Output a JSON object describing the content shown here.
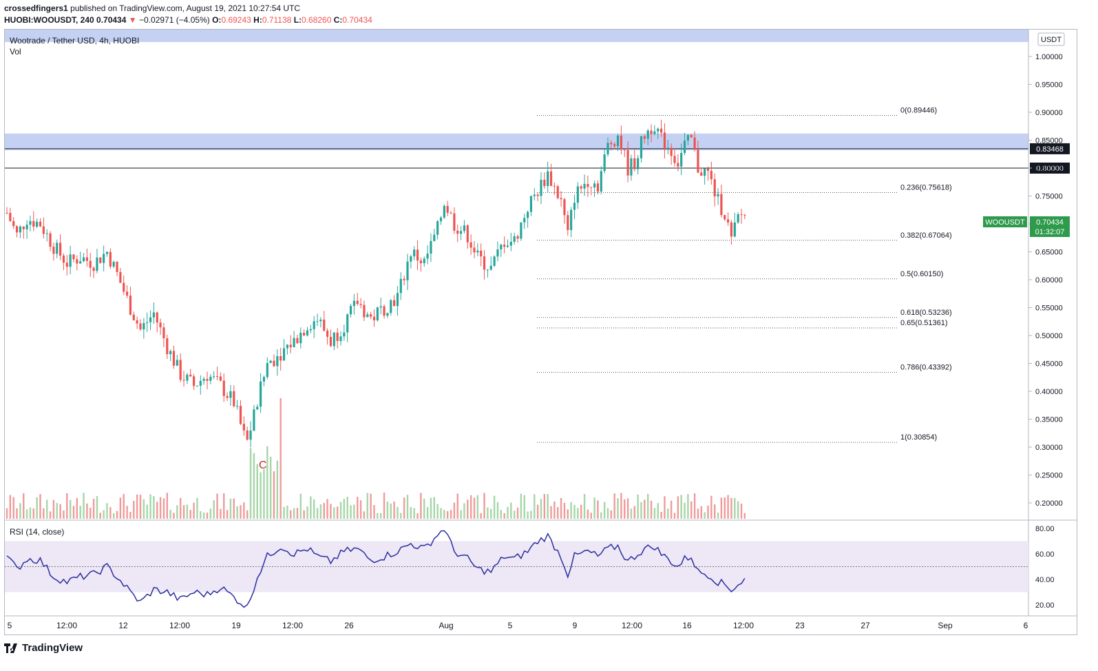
{
  "header": {
    "author": "crossedfingers1",
    "published": "published on TradingView.com, August 19, 2021 10:27:54 UTC",
    "symbol_line": "HUOBI:WOOUSDT, 240",
    "last": "0.70434",
    "change": "−0.02971 (−4.05%)",
    "open_label": "O:",
    "open": "0.69243",
    "high_label": "H:",
    "high": "0.71138",
    "low_label": "L:",
    "low": "0.68260",
    "close_label": "C:",
    "close": "0.70434"
  },
  "legend": {
    "pair": "Wootrade / Tether USD, 4h, HUOBI",
    "vol": "Vol"
  },
  "currency": "USDT",
  "price_tag": {
    "symbol": "WOOUSDT",
    "price": "0.70434",
    "countdown": "01:32:07"
  },
  "hlines": [
    {
      "label": "0.83468",
      "value": 0.83468
    },
    {
      "label": "0.80000",
      "value": 0.8
    }
  ],
  "fib": [
    {
      "label": "0(0.89446)",
      "value": 0.89446
    },
    {
      "label": "0.236(0.75618)",
      "value": 0.75618
    },
    {
      "label": "0.382(0.67064)",
      "value": 0.67064
    },
    {
      "label": "0.5(0.60150)",
      "value": 0.6015
    },
    {
      "label": "0.618(0.53236)",
      "value": 0.53236
    },
    {
      "label": "0.65(0.51361)",
      "value": 0.51361
    },
    {
      "label": "0.786(0.43392)",
      "value": 0.43392
    },
    {
      "label": "1(0.30854)",
      "value": 0.30854
    }
  ],
  "zones": [
    {
      "from": 0.832,
      "to": 0.862
    }
  ],
  "marker": "C",
  "rsi": {
    "label": "RSI (14, close)",
    "ticks": [
      "80.00",
      "60.00",
      "40.00",
      "20.00"
    ],
    "band": [
      30,
      70
    ],
    "mid": 50
  },
  "brand": "TradingView",
  "colors": {
    "up": "#26a69a",
    "down": "#ef5350",
    "rsi_line": "#2a2e9e",
    "rsi_band": "#ede7f6",
    "zone": "#c5d1f3",
    "tag": "#2e9a4b"
  },
  "chart_data": {
    "type": "candlestick",
    "ylim": [
      0.17,
      1.03
    ],
    "yticks": [
      "1.00000",
      "0.95000",
      "0.90000",
      "0.85000",
      "0.80000",
      "0.75000",
      "0.70000",
      "0.65000",
      "0.60000",
      "0.55000",
      "0.50000",
      "0.45000",
      "0.40000",
      "0.35000",
      "0.30000",
      "0.25000",
      "0.20000"
    ],
    "xticks": [
      "5",
      "12:00",
      "12",
      "12:00",
      "19",
      "12:00",
      "26",
      "Aug",
      "5",
      "9",
      "12:00",
      "16",
      "12:00",
      "23",
      "27",
      "Sep",
      "6"
    ],
    "close_path": [
      [
        0,
        0.72
      ],
      [
        3,
        0.68
      ],
      [
        6,
        0.71
      ],
      [
        10,
        0.7
      ],
      [
        14,
        0.66
      ],
      [
        18,
        0.63
      ],
      [
        22,
        0.64
      ],
      [
        26,
        0.63
      ],
      [
        30,
        0.65
      ],
      [
        33,
        0.61
      ],
      [
        37,
        0.55
      ],
      [
        40,
        0.51
      ],
      [
        44,
        0.54
      ],
      [
        48,
        0.48
      ],
      [
        52,
        0.43
      ],
      [
        56,
        0.41
      ],
      [
        60,
        0.43
      ],
      [
        64,
        0.41
      ],
      [
        68,
        0.38
      ],
      [
        71,
        0.32
      ],
      [
        72,
        0.31
      ],
      [
        75,
        0.38
      ],
      [
        78,
        0.45
      ],
      [
        82,
        0.47
      ],
      [
        86,
        0.49
      ],
      [
        90,
        0.52
      ],
      [
        93,
        0.53
      ],
      [
        97,
        0.49
      ],
      [
        101,
        0.52
      ],
      [
        105,
        0.56
      ],
      [
        109,
        0.53
      ],
      [
        113,
        0.55
      ],
      [
        117,
        0.57
      ],
      [
        121,
        0.65
      ],
      [
        125,
        0.63
      ],
      [
        129,
        0.69
      ],
      [
        131,
        0.74
      ],
      [
        134,
        0.7
      ],
      [
        138,
        0.68
      ],
      [
        141,
        0.64
      ],
      [
        145,
        0.62
      ],
      [
        149,
        0.67
      ],
      [
        152,
        0.67
      ],
      [
        156,
        0.73
      ],
      [
        159,
        0.76
      ],
      [
        162,
        0.79
      ],
      [
        166,
        0.74
      ],
      [
        168,
        0.68
      ],
      [
        170,
        0.75
      ],
      [
        174,
        0.78
      ],
      [
        177,
        0.77
      ],
      [
        180,
        0.84
      ],
      [
        183,
        0.86
      ],
      [
        186,
        0.8
      ],
      [
        188,
        0.81
      ],
      [
        191,
        0.86
      ],
      [
        194,
        0.88
      ],
      [
        196,
        0.85
      ],
      [
        198,
        0.84
      ],
      [
        201,
        0.81
      ],
      [
        203,
        0.84
      ],
      [
        205,
        0.85
      ],
      [
        207,
        0.8
      ],
      [
        210,
        0.79
      ],
      [
        213,
        0.74
      ],
      [
        215,
        0.72
      ],
      [
        217,
        0.67
      ],
      [
        219,
        0.71
      ],
      [
        221,
        0.72
      ]
    ],
    "rsi_path": [
      [
        0,
        58
      ],
      [
        3,
        48
      ],
      [
        6,
        56
      ],
      [
        10,
        55
      ],
      [
        14,
        42
      ],
      [
        18,
        38
      ],
      [
        22,
        42
      ],
      [
        26,
        44
      ],
      [
        30,
        50
      ],
      [
        33,
        42
      ],
      [
        37,
        30
      ],
      [
        40,
        22
      ],
      [
        44,
        32
      ],
      [
        48,
        30
      ],
      [
        52,
        24
      ],
      [
        56,
        30
      ],
      [
        60,
        28
      ],
      [
        64,
        34
      ],
      [
        68,
        26
      ],
      [
        71,
        20
      ],
      [
        72,
        18
      ],
      [
        75,
        42
      ],
      [
        78,
        58
      ],
      [
        82,
        66
      ],
      [
        86,
        60
      ],
      [
        90,
        64
      ],
      [
        93,
        58
      ],
      [
        97,
        54
      ],
      [
        101,
        62
      ],
      [
        105,
        64
      ],
      [
        109,
        55
      ],
      [
        113,
        58
      ],
      [
        117,
        62
      ],
      [
        121,
        68
      ],
      [
        125,
        64
      ],
      [
        129,
        75
      ],
      [
        131,
        80
      ],
      [
        134,
        62
      ],
      [
        138,
        56
      ],
      [
        141,
        48
      ],
      [
        145,
        46
      ],
      [
        149,
        58
      ],
      [
        152,
        56
      ],
      [
        156,
        62
      ],
      [
        159,
        70
      ],
      [
        162,
        74
      ],
      [
        166,
        58
      ],
      [
        168,
        44
      ],
      [
        170,
        58
      ],
      [
        174,
        62
      ],
      [
        177,
        58
      ],
      [
        180,
        64
      ],
      [
        183,
        66
      ],
      [
        186,
        54
      ],
      [
        188,
        58
      ],
      [
        191,
        64
      ],
      [
        194,
        66
      ],
      [
        196,
        60
      ],
      [
        198,
        56
      ],
      [
        201,
        50
      ],
      [
        203,
        56
      ],
      [
        205,
        58
      ],
      [
        207,
        46
      ],
      [
        210,
        44
      ],
      [
        213,
        38
      ],
      [
        215,
        36
      ],
      [
        217,
        32
      ],
      [
        219,
        36
      ],
      [
        221,
        40
      ]
    ]
  }
}
